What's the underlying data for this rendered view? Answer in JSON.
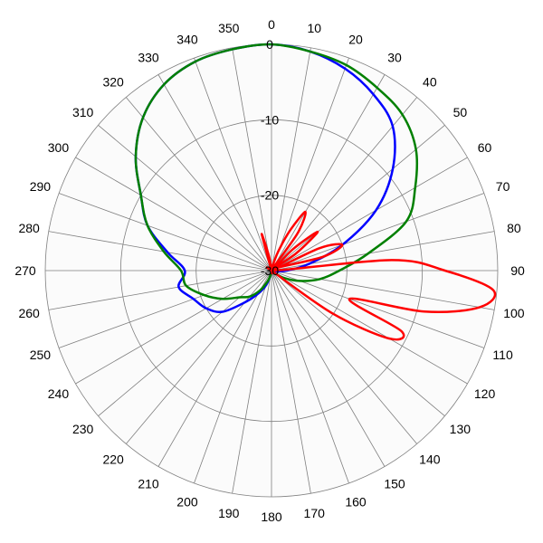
{
  "chart_data": {
    "type": "line",
    "polar": true,
    "angle_direction": "clockwise",
    "zero_at": "top",
    "angle_ticks": [
      0,
      10,
      20,
      30,
      40,
      50,
      60,
      70,
      80,
      90,
      100,
      110,
      120,
      130,
      140,
      150,
      160,
      170,
      180,
      190,
      200,
      210,
      220,
      230,
      240,
      250,
      260,
      270,
      280,
      290,
      300,
      310,
      320,
      330,
      340,
      350
    ],
    "angle_tick_labels": [
      "0",
      "10",
      "20",
      "30",
      "40",
      "50",
      "60",
      "70",
      "80",
      "90",
      "100",
      "110",
      "120",
      "130",
      "140",
      "150",
      "160",
      "170",
      "180",
      "190",
      "200",
      "210",
      "220",
      "230",
      "240",
      "250",
      "260",
      "270",
      "280",
      "290",
      "300",
      "310",
      "320",
      "330",
      "340",
      "350"
    ],
    "radial_range": [
      -30,
      0
    ],
    "radial_ticks": [
      0,
      -10,
      -20,
      -30
    ],
    "radial_tick_labels": [
      "0",
      "-10",
      "-20",
      "-30"
    ],
    "grid": true,
    "series": [
      {
        "color": "#0000ff",
        "angles": [
          0,
          10,
          20,
          30,
          40,
          50,
          60,
          70,
          80,
          90,
          100,
          110,
          120,
          130,
          140,
          150,
          160,
          170,
          180,
          190,
          200,
          210,
          220,
          230,
          240,
          250,
          260,
          270,
          280,
          290,
          300,
          310,
          320,
          330,
          340,
          350
        ],
        "values": [
          0,
          -0.5,
          -1.5,
          -3,
          -5,
          -9,
          -14,
          -20,
          -25,
          -28,
          -29.5,
          -30,
          -30,
          -30,
          -30,
          -30,
          -30,
          -30,
          -30,
          -29.5,
          -28,
          -26.5,
          -24.5,
          -21.5,
          -20,
          -19,
          -17.5,
          -18.5,
          -16,
          -12.5,
          -10,
          -6.5,
          -3.5,
          -1.5,
          -0.5,
          -0.2
        ]
      },
      {
        "color": "#008000",
        "angles": [
          0,
          10,
          20,
          30,
          40,
          50,
          60,
          70,
          80,
          90,
          100,
          110,
          120,
          130,
          140,
          150,
          160,
          170,
          180,
          190,
          200,
          210,
          220,
          230,
          240,
          250,
          260,
          270,
          280,
          290,
          300,
          310,
          320,
          330,
          340,
          350
        ],
        "values": [
          0,
          -0.5,
          -1,
          -2,
          -3,
          -5,
          -8,
          -11,
          -17,
          -21,
          -23.5,
          -26,
          -28,
          -29.5,
          -30,
          -30,
          -30,
          -30,
          -30,
          -29.5,
          -28.5,
          -27,
          -25.5,
          -24.5,
          -22.5,
          -20.5,
          -18.5,
          -18,
          -15.5,
          -12.5,
          -10,
          -6.5,
          -3.5,
          -1.5,
          -0.5,
          -0.2
        ]
      },
      {
        "color": "#ff0000",
        "angles": [
          0,
          5,
          10,
          15,
          20,
          25,
          30,
          35,
          40,
          45,
          50,
          55,
          60,
          65,
          70,
          75,
          80,
          85,
          90,
          95,
          100,
          105,
          110,
          115,
          120,
          125,
          130,
          135,
          140,
          150,
          160,
          170,
          180,
          190,
          200,
          210,
          220,
          230,
          240,
          250,
          260,
          270,
          280,
          290,
          300,
          310,
          320,
          330,
          335,
          340,
          345,
          350,
          355
        ],
        "values": [
          -30,
          -30,
          -30,
          -29,
          -27,
          -24,
          -21,
          -24,
          -30,
          -26,
          -22,
          -26,
          -30,
          -23,
          -20,
          -23,
          -30,
          -14,
          -7,
          -0.5,
          -2,
          -9,
          -19,
          -11,
          -12,
          -20,
          -30,
          -30,
          -30,
          -30,
          -30,
          -30,
          -30,
          -30,
          -30,
          -30,
          -30,
          -30,
          -30,
          -30,
          -30,
          -30,
          -30,
          -30,
          -30,
          -30,
          -30,
          -30,
          -30,
          -30,
          -25,
          -28,
          -30
        ]
      }
    ]
  }
}
